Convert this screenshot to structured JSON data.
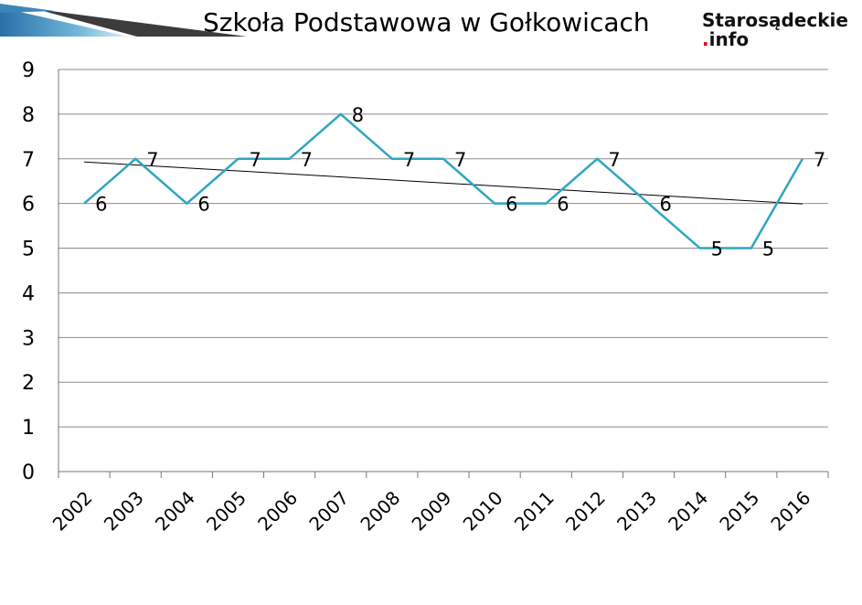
{
  "title": "Szkoła Podstawowa w Gołkowicach",
  "logo": {
    "line1": "Starosądeckie",
    "dot": ".",
    "line2": "info"
  },
  "colors": {
    "series": "#2ea6c1",
    "trend": "#000000",
    "grid": "#8c8c8c"
  },
  "chart_data": {
    "type": "line",
    "categories": [
      "2002",
      "2003",
      "2004",
      "2005",
      "2006",
      "2007",
      "2008",
      "2009",
      "2010",
      "2011",
      "2012",
      "2013",
      "2014",
      "2015",
      "2016"
    ],
    "series": [
      {
        "values": [
          6,
          7,
          6,
          7,
          7,
          8,
          7,
          7,
          6,
          6,
          7,
          6,
          5,
          5,
          7
        ]
      }
    ],
    "trendline": {
      "type": "linear",
      "start": 6.93,
      "end": 5.99
    },
    "ylim": [
      0,
      9
    ],
    "yticks": [
      "0",
      "1",
      "2",
      "3",
      "4",
      "5",
      "6",
      "7",
      "8",
      "9"
    ],
    "grid": true,
    "data_labels": true,
    "legend": "none",
    "xlabel": "",
    "ylabel": ""
  }
}
